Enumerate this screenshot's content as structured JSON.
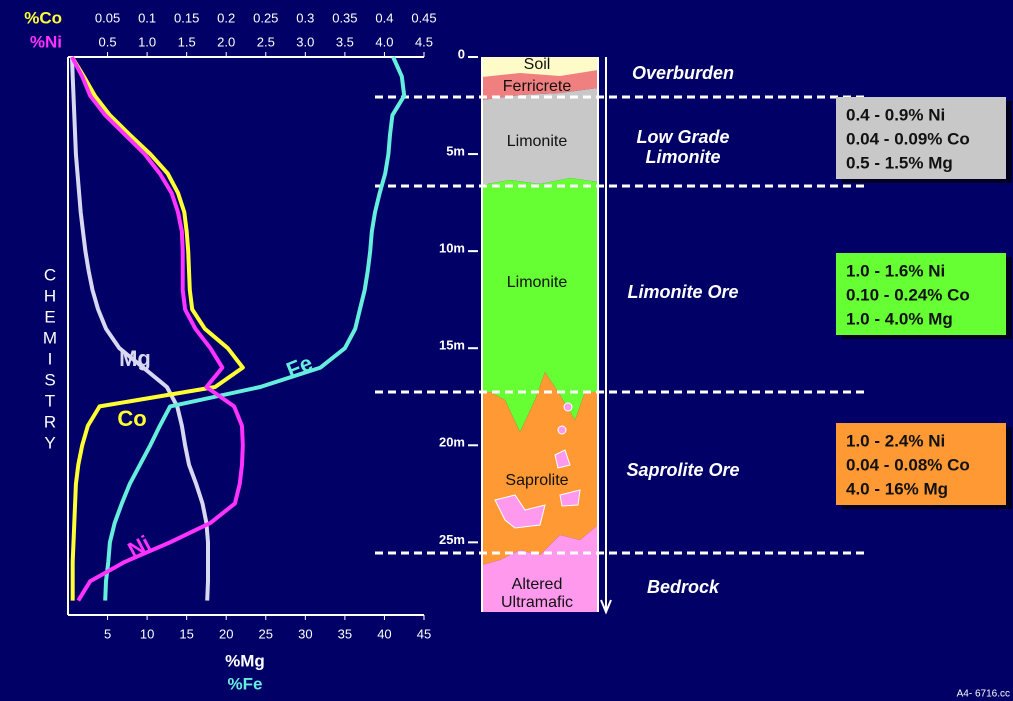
{
  "chart_data": {
    "type": "line",
    "y_label": "CHEMISTRY",
    "ylim": [
      0,
      29
    ],
    "yticks": [
      0,
      {
        "value": 5,
        "label": "5m"
      },
      {
        "value": 10,
        "label": "10m"
      },
      {
        "value": 15,
        "label": "15m"
      },
      {
        "value": 20,
        "label": "20m"
      },
      {
        "value": 25,
        "label": "25m"
      }
    ],
    "axes": {
      "co": {
        "label": "%Co",
        "color": "#ffff33",
        "xlim": [
          0,
          0.45
        ],
        "xticks": [
          0.05,
          0.1,
          0.15,
          0.2,
          0.25,
          0.3,
          0.35,
          0.4,
          0.45
        ]
      },
      "ni": {
        "label": "%Ni",
        "color": "#ff33ff",
        "xlim": [
          0,
          4.5
        ],
        "xticks": [
          0.5,
          {
            "value": 1,
            "label": "1.0"
          },
          1.5,
          {
            "value": 2,
            "label": "2.0"
          },
          2.5,
          {
            "value": 3,
            "label": "3.0"
          },
          3.5,
          {
            "value": 4,
            "label": "4.0"
          },
          4.5
        ]
      },
      "bottom": {
        "label": "%Mg",
        "label2": "%Fe",
        "color": "#ffffff",
        "color2": "#66eedd",
        "xlim": [
          0,
          45
        ],
        "xticks": [
          5,
          10,
          15,
          20,
          25,
          30,
          35,
          40,
          45
        ]
      }
    },
    "depth": [
      0,
      1,
      2,
      3,
      4,
      5,
      6,
      7,
      8,
      9,
      10,
      11,
      12,
      13,
      14,
      15,
      16,
      17,
      18,
      19,
      20,
      21,
      22,
      23,
      24,
      25,
      26,
      27,
      28
    ],
    "series": [
      {
        "name": "Mg",
        "color": "#d8d8f0",
        "axis": "bottom",
        "values": [
          0.5,
          0.6,
          0.7,
          0.8,
          0.9,
          1,
          1.2,
          1.4,
          1.6,
          1.9,
          2.2,
          2.6,
          3.1,
          3.8,
          4.8,
          6.5,
          9.5,
          12.5,
          13.8,
          14.4,
          14.8,
          15.3,
          16.2,
          17,
          17.5,
          17.7,
          17.7,
          17.7,
          17.6
        ]
      },
      {
        "name": "Co",
        "color": "#ffff33",
        "axis": "co",
        "values": [
          0.005,
          0.02,
          0.034,
          0.053,
          0.078,
          0.104,
          0.126,
          0.139,
          0.147,
          0.15,
          0.152,
          0.153,
          0.154,
          0.157,
          0.173,
          0.202,
          0.221,
          0.186,
          0.04,
          0.025,
          0.018,
          0.013,
          0.01,
          0.009,
          0.008,
          0.007,
          0.006,
          0.006,
          0.006
        ]
      },
      {
        "name": "Fe",
        "color": "#66eedd",
        "axis": "bottom",
        "values": [
          41.1,
          42.2,
          42.5,
          41,
          40.7,
          40.5,
          40.1,
          39.4,
          38.8,
          38.4,
          38.2,
          37.9,
          37.5,
          36.9,
          36.3,
          35,
          31.9,
          24.3,
          12.9,
          11.6,
          10.4,
          9.1,
          7.8,
          6.8,
          5.9,
          5.3,
          5.1,
          4.8,
          4.7
        ]
      },
      {
        "name": "Ni",
        "color": "#ff33ff",
        "axis": "ni",
        "values": [
          0.05,
          0.18,
          0.28,
          0.47,
          0.72,
          0.97,
          1.16,
          1.31,
          1.39,
          1.44,
          1.45,
          1.45,
          1.45,
          1.48,
          1.61,
          1.8,
          1.95,
          1.75,
          2.1,
          2.2,
          2.21,
          2.2,
          2.17,
          2.11,
          1.8,
          1.29,
          0.72,
          0.28,
          0.13
        ]
      }
    ]
  },
  "profile": {
    "layers": [
      {
        "lines": [
          "Soil"
        ]
      },
      {
        "lines": [
          "Ferricrete"
        ]
      },
      {
        "lines": [
          "Limonite"
        ]
      },
      {
        "lines": [
          "Limonite"
        ]
      },
      {
        "lines": [
          "Saprolite"
        ]
      },
      {
        "lines": [
          "Altered",
          "Ultramafic"
        ]
      }
    ],
    "zones": [
      {
        "lines": [
          "Overburden"
        ]
      },
      {
        "lines": [
          "Low Grade",
          "Limonite"
        ]
      },
      {
        "lines": [
          "Limonite Ore"
        ]
      },
      {
        "lines": [
          "Saprolite Ore"
        ]
      },
      {
        "lines": [
          "Bedrock"
        ]
      }
    ],
    "grades": [
      {
        "color": "#c8c8c8",
        "lines": [
          "0.4 - 0.9% Ni",
          "0.04 - 0.09% Co",
          "0.5 - 1.5% Mg"
        ]
      },
      {
        "color": "#66ff33",
        "lines": [
          "1.0 - 1.6% Ni",
          "0.10 - 0.24% Co",
          "1.0 - 4.0% Mg"
        ]
      },
      {
        "color": "#ff9933",
        "lines": [
          "1.0 - 2.4% Ni",
          "0.04 - 0.08% Co",
          "4.0 - 16% Mg"
        ]
      }
    ]
  },
  "footer": "A4- 6716.cc"
}
